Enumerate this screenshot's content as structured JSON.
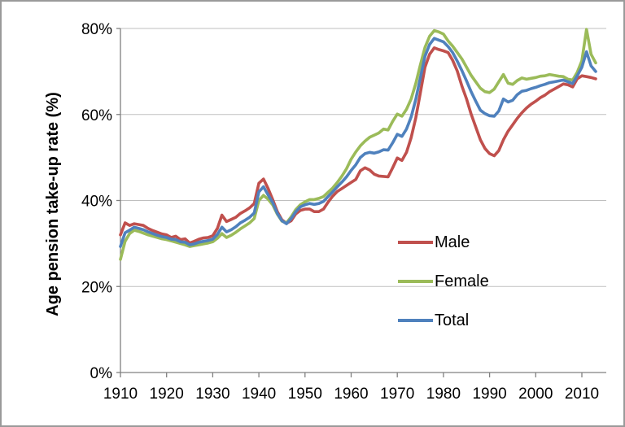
{
  "chart": {
    "y_axis_title": "Age pension take-up rate (%)",
    "y_ticks": [
      {
        "value": 0,
        "label": "0%"
      },
      {
        "value": 20,
        "label": "20%"
      },
      {
        "value": 40,
        "label": "40%"
      },
      {
        "value": 60,
        "label": "60%"
      },
      {
        "value": 80,
        "label": "80%"
      }
    ],
    "x_ticks": [
      {
        "value": 1910,
        "label": "1910"
      },
      {
        "value": 1920,
        "label": "1920"
      },
      {
        "value": 1930,
        "label": "1930"
      },
      {
        "value": 1940,
        "label": "1940"
      },
      {
        "value": 1950,
        "label": "1950"
      },
      {
        "value": 1960,
        "label": "1960"
      },
      {
        "value": 1970,
        "label": "1970"
      },
      {
        "value": 1980,
        "label": "1980"
      },
      {
        "value": 1990,
        "label": "1990"
      },
      {
        "value": 2000,
        "label": "2000"
      },
      {
        "value": 2010,
        "label": "2010"
      }
    ],
    "colors": {
      "male": "#C0504D",
      "female": "#9BBB59",
      "total": "#4F81BD",
      "gridline": "#BFBFBF",
      "axis": "#808080",
      "frame_border": "#9A9A9A"
    },
    "legend": {
      "position": "middle-right",
      "items": [
        {
          "label": "Male",
          "color": "#C0504D"
        },
        {
          "label": "Female",
          "color": "#9BBB59"
        },
        {
          "label": "Total",
          "color": "#4F81BD"
        }
      ]
    }
  },
  "chart_data": {
    "type": "line",
    "title": "",
    "xlabel": "",
    "ylabel": "Age pension take-up rate (%)",
    "ylim": [
      0,
      80
    ],
    "xlim": [
      1910,
      2013
    ],
    "grid": "horizontal",
    "legend_position": "middle-right",
    "x": [
      1910,
      1911,
      1912,
      1913,
      1914,
      1915,
      1916,
      1917,
      1918,
      1919,
      1920,
      1921,
      1922,
      1923,
      1924,
      1925,
      1926,
      1927,
      1928,
      1929,
      1930,
      1931,
      1932,
      1933,
      1934,
      1935,
      1936,
      1937,
      1938,
      1939,
      1940,
      1941,
      1942,
      1943,
      1944,
      1945,
      1946,
      1947,
      1948,
      1949,
      1950,
      1951,
      1952,
      1953,
      1954,
      1955,
      1956,
      1957,
      1958,
      1959,
      1960,
      1961,
      1962,
      1963,
      1964,
      1965,
      1966,
      1967,
      1968,
      1969,
      1970,
      1971,
      1972,
      1973,
      1974,
      1975,
      1976,
      1977,
      1978,
      1979,
      1980,
      1981,
      1982,
      1983,
      1984,
      1985,
      1986,
      1987,
      1988,
      1989,
      1990,
      1991,
      1992,
      1993,
      1994,
      1995,
      1996,
      1997,
      1998,
      1999,
      2000,
      2001,
      2002,
      2003,
      2004,
      2005,
      2006,
      2007,
      2008,
      2009,
      2010,
      2011,
      2012,
      2013
    ],
    "series": [
      {
        "name": "Male",
        "color": "#C0504D",
        "values": [
          32.0,
          34.8,
          34.2,
          34.6,
          34.4,
          34.2,
          33.5,
          33.0,
          32.6,
          32.2,
          32.0,
          31.4,
          31.7,
          30.9,
          31.1,
          30.1,
          30.5,
          31.0,
          31.3,
          31.4,
          31.8,
          33.5,
          36.6,
          35.1,
          35.6,
          36.1,
          37.0,
          37.6,
          38.3,
          39.3,
          44.0,
          45.0,
          42.8,
          40.2,
          37.4,
          35.5,
          34.7,
          35.3,
          36.9,
          37.7,
          38.0,
          38.0,
          37.4,
          37.4,
          38.0,
          39.6,
          41.0,
          42.1,
          42.8,
          43.5,
          44.2,
          44.9,
          46.9,
          47.6,
          47.1,
          46.1,
          45.7,
          45.6,
          45.5,
          47.6,
          49.9,
          49.3,
          51.2,
          54.6,
          59.2,
          65.0,
          71.0,
          74.0,
          75.5,
          75.1,
          74.8,
          74.4,
          72.6,
          70.1,
          66.6,
          63.6,
          60.1,
          57.1,
          54.1,
          52.1,
          50.9,
          50.4,
          51.6,
          54.1,
          56.1,
          57.6,
          59.1,
          60.4,
          61.5,
          62.4,
          63.1,
          63.9,
          64.5,
          65.3,
          65.9,
          66.5,
          67.1,
          66.9,
          66.4,
          68.3,
          69.0,
          68.8,
          68.6,
          68.3
        ]
      },
      {
        "name": "Female",
        "color": "#9BBB59",
        "values": [
          26.3,
          30.5,
          32.3,
          33.1,
          32.8,
          32.4,
          32.0,
          31.7,
          31.4,
          31.1,
          30.9,
          30.6,
          30.3,
          30.0,
          29.7,
          29.3,
          29.5,
          29.7,
          29.9,
          30.1,
          30.4,
          31.2,
          32.3,
          31.4,
          31.9,
          32.6,
          33.4,
          34.1,
          34.8,
          35.8,
          40.0,
          41.2,
          40.3,
          39.0,
          36.8,
          35.2,
          34.8,
          36.2,
          37.9,
          39.0,
          39.7,
          40.2,
          40.2,
          40.5,
          40.9,
          41.9,
          42.9,
          44.2,
          45.7,
          47.4,
          49.6,
          51.3,
          52.7,
          53.8,
          54.7,
          55.2,
          55.7,
          56.6,
          56.4,
          58.4,
          60.1,
          59.6,
          61.2,
          63.6,
          67.2,
          71.5,
          75.6,
          78.2,
          79.5,
          79.2,
          78.7,
          77.1,
          75.9,
          74.4,
          72.9,
          71.0,
          69.1,
          67.6,
          66.1,
          65.3,
          65.1,
          65.9,
          67.6,
          69.3,
          67.3,
          67.0,
          67.9,
          68.5,
          68.2,
          68.4,
          68.6,
          68.9,
          69.0,
          69.3,
          69.1,
          68.9,
          68.8,
          68.2,
          68.0,
          69.8,
          72.5,
          79.8,
          74.0,
          72.0
        ]
      },
      {
        "name": "Total",
        "color": "#4F81BD",
        "values": [
          29.3,
          32.5,
          33.1,
          33.8,
          33.5,
          33.2,
          32.7,
          32.3,
          31.9,
          31.6,
          31.4,
          31.0,
          30.9,
          30.4,
          30.3,
          29.7,
          29.9,
          30.3,
          30.5,
          30.7,
          31.0,
          32.1,
          33.8,
          32.7,
          33.2,
          33.9,
          34.8,
          35.4,
          36.1,
          37.1,
          42.0,
          43.2,
          41.3,
          39.5,
          37.0,
          35.3,
          34.6,
          35.8,
          37.4,
          38.5,
          39.0,
          39.3,
          39.1,
          39.3,
          39.8,
          40.9,
          42.0,
          43.2,
          44.3,
          45.5,
          47.0,
          48.3,
          50.0,
          50.9,
          51.2,
          51.0,
          51.3,
          51.8,
          51.7,
          53.4,
          55.4,
          54.9,
          56.6,
          59.4,
          63.5,
          68.5,
          73.5,
          76.3,
          77.7,
          77.3,
          76.9,
          75.8,
          74.4,
          72.4,
          70.2,
          67.8,
          65.3,
          63.1,
          61.0,
          60.2,
          59.7,
          59.6,
          60.8,
          63.6,
          62.9,
          63.3,
          64.6,
          65.4,
          65.6,
          66.0,
          66.3,
          66.7,
          67.0,
          67.4,
          67.6,
          67.8,
          68.0,
          67.6,
          67.2,
          69.0,
          71.0,
          74.6,
          71.3,
          70.0
        ]
      }
    ]
  }
}
